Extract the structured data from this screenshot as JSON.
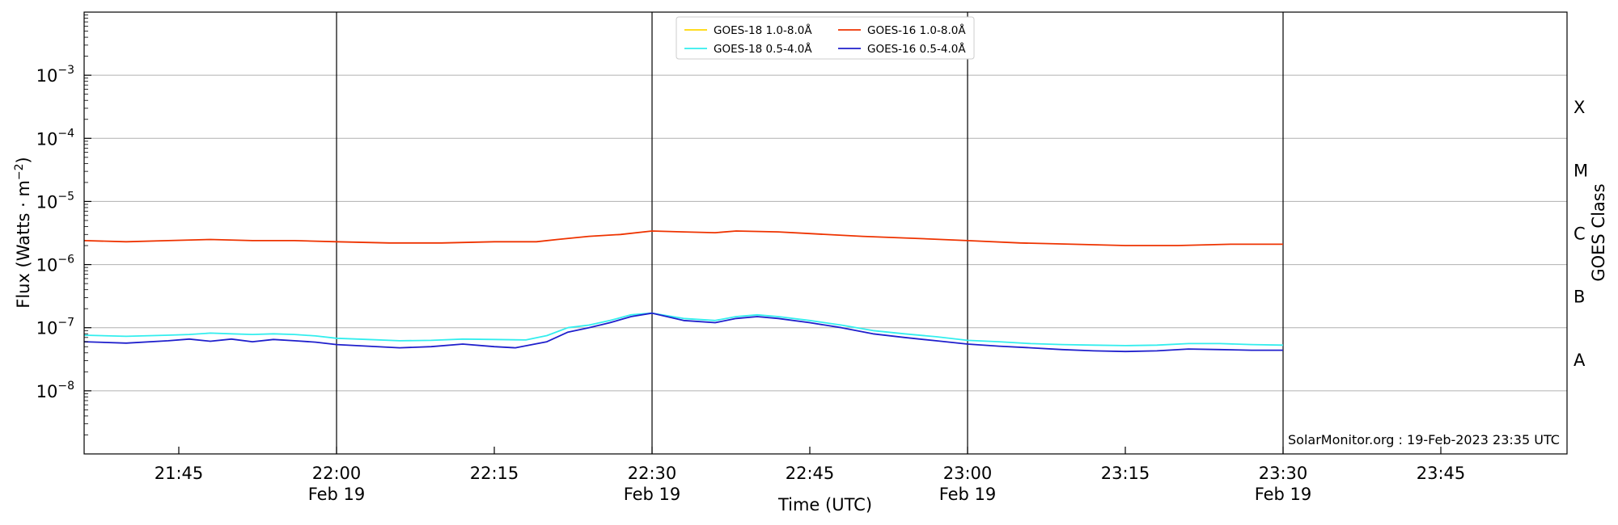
{
  "chart_data": {
    "type": "line",
    "title": "",
    "xlabel": "Time (UTC)",
    "ylabel": "Flux (Watts · m",
    "ylabel_sup": "−2",
    "ylabel_close": ")",
    "right_label": "GOES Class",
    "y_scale": "log",
    "ylim": [
      1e-09,
      0.01
    ],
    "xlim": [
      "21:36",
      "23:57"
    ],
    "grid": "horizontal",
    "legend_position": "top-center",
    "watermark": "SolarMonitor.org : 19-Feb-2023 23:35 UTC",
    "y_ticks": [
      {
        "exp": -8,
        "base": "10",
        "sup": "−8"
      },
      {
        "exp": -7,
        "base": "10",
        "sup": "−7"
      },
      {
        "exp": -6,
        "base": "10",
        "sup": "−6"
      },
      {
        "exp": -5,
        "base": "10",
        "sup": "−5"
      },
      {
        "exp": -4,
        "base": "10",
        "sup": "−4"
      },
      {
        "exp": -3,
        "base": "10",
        "sup": "−3"
      }
    ],
    "class_labels": [
      {
        "label": "A",
        "exp": -7.5
      },
      {
        "label": "B",
        "exp": -6.5
      },
      {
        "label": "C",
        "exp": -5.5
      },
      {
        "label": "M",
        "exp": -4.5
      },
      {
        "label": "X",
        "exp": -3.5
      }
    ],
    "x_ticks": [
      {
        "time": "21:45",
        "label": "21:45",
        "date": ""
      },
      {
        "time": "22:00",
        "label": "22:00",
        "date": "Feb 19"
      },
      {
        "time": "22:15",
        "label": "22:15",
        "date": ""
      },
      {
        "time": "22:30",
        "label": "22:30",
        "date": "Feb 19"
      },
      {
        "time": "22:45",
        "label": "22:45",
        "date": ""
      },
      {
        "time": "23:00",
        "label": "23:00",
        "date": "Feb 19"
      },
      {
        "time": "23:15",
        "label": "23:15",
        "date": ""
      },
      {
        "time": "23:30",
        "label": "23:30",
        "date": "Feb 19"
      },
      {
        "time": "23:45",
        "label": "23:45",
        "date": ""
      }
    ],
    "vlines": [
      "22:00",
      "22:30",
      "23:00",
      "23:30"
    ],
    "series": [
      {
        "name": "GOES-18 1.0-8.0Å",
        "color": "#ffd700",
        "x": [],
        "y": []
      },
      {
        "name": "GOES-18 0.5-4.0Å",
        "color": "#33eeee",
        "x": [
          "21:36",
          "21:40",
          "21:44",
          "21:46",
          "21:48",
          "21:50",
          "21:52",
          "21:54",
          "21:56",
          "21:58",
          "22:00",
          "22:03",
          "22:06",
          "22:09",
          "22:12",
          "22:15",
          "22:18",
          "22:20",
          "22:22",
          "22:24",
          "22:26",
          "22:28",
          "22:30",
          "22:33",
          "22:36",
          "22:38",
          "22:40",
          "22:42",
          "22:45",
          "22:48",
          "22:51",
          "22:54",
          "22:57",
          "23:00",
          "23:03",
          "23:06",
          "23:09",
          "23:12",
          "23:15",
          "23:18",
          "23:21",
          "23:24",
          "23:27",
          "23:30"
        ],
        "y": [
          7.6e-08,
          7.3e-08,
          7.6e-08,
          7.8e-08,
          8.2e-08,
          8e-08,
          7.8e-08,
          8e-08,
          7.8e-08,
          7.4e-08,
          6.8e-08,
          6.5e-08,
          6.2e-08,
          6.3e-08,
          6.6e-08,
          6.5e-08,
          6.4e-08,
          7.5e-08,
          1e-07,
          1.1e-07,
          1.3e-07,
          1.6e-07,
          1.7e-07,
          1.4e-07,
          1.3e-07,
          1.5e-07,
          1.6e-07,
          1.5e-07,
          1.3e-07,
          1.1e-07,
          9e-08,
          8e-08,
          7.2e-08,
          6.3e-08,
          6e-08,
          5.6e-08,
          5.4e-08,
          5.3e-08,
          5.2e-08,
          5.3e-08,
          5.6e-08,
          5.6e-08,
          5.4e-08,
          5.3e-08
        ]
      },
      {
        "name": "GOES-16 1.0-8.0Å",
        "color": "#ee3300",
        "x": [
          "21:36",
          "21:40",
          "21:44",
          "21:48",
          "21:52",
          "21:56",
          "22:00",
          "22:05",
          "22:10",
          "22:15",
          "22:19",
          "22:21",
          "22:24",
          "22:27",
          "22:30",
          "22:33",
          "22:36",
          "22:38",
          "22:42",
          "22:45",
          "22:50",
          "22:55",
          "23:00",
          "23:05",
          "23:10",
          "23:15",
          "23:20",
          "23:25",
          "23:30"
        ],
        "y": [
          2.4e-06,
          2.3e-06,
          2.4e-06,
          2.5e-06,
          2.4e-06,
          2.4e-06,
          2.3e-06,
          2.2e-06,
          2.2e-06,
          2.3e-06,
          2.3e-06,
          2.5e-06,
          2.8e-06,
          3e-06,
          3.4e-06,
          3.3e-06,
          3.2e-06,
          3.4e-06,
          3.3e-06,
          3.1e-06,
          2.8e-06,
          2.6e-06,
          2.4e-06,
          2.2e-06,
          2.1e-06,
          2e-06,
          2e-06,
          2.1e-06,
          2.1e-06
        ]
      },
      {
        "name": "GOES-16 0.5-4.0Å",
        "color": "#1f1fcc",
        "x": [
          "21:36",
          "21:40",
          "21:44",
          "21:46",
          "21:48",
          "21:50",
          "21:52",
          "21:54",
          "21:56",
          "21:58",
          "22:00",
          "22:03",
          "22:06",
          "22:09",
          "22:12",
          "22:15",
          "22:17",
          "22:20",
          "22:22",
          "22:24",
          "22:26",
          "22:28",
          "22:30",
          "22:33",
          "22:36",
          "22:38",
          "22:40",
          "22:42",
          "22:45",
          "22:48",
          "22:51",
          "22:54",
          "22:57",
          "23:00",
          "23:03",
          "23:06",
          "23:09",
          "23:12",
          "23:15",
          "23:18",
          "23:21",
          "23:24",
          "23:27",
          "23:30"
        ],
        "y": [
          6e-08,
          5.7e-08,
          6.2e-08,
          6.6e-08,
          6.1e-08,
          6.6e-08,
          6e-08,
          6.5e-08,
          6.2e-08,
          5.9e-08,
          5.4e-08,
          5.1e-08,
          4.8e-08,
          5e-08,
          5.5e-08,
          5e-08,
          4.8e-08,
          6e-08,
          8.5e-08,
          1e-07,
          1.2e-07,
          1.5e-07,
          1.7e-07,
          1.3e-07,
          1.2e-07,
          1.4e-07,
          1.5e-07,
          1.4e-07,
          1.2e-07,
          1e-07,
          8e-08,
          7e-08,
          6.2e-08,
          5.5e-08,
          5.1e-08,
          4.8e-08,
          4.5e-08,
          4.3e-08,
          4.2e-08,
          4.3e-08,
          4.6e-08,
          4.5e-08,
          4.4e-08,
          4.4e-08
        ]
      }
    ]
  }
}
